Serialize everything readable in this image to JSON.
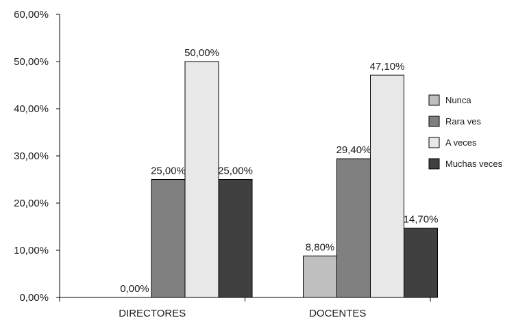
{
  "chart_data": {
    "type": "bar",
    "title": "",
    "xlabel": "",
    "ylabel": "",
    "ylim": [
      0,
      60
    ],
    "yticks": [
      "0,00%",
      "10,00%",
      "20,00%",
      "30,00%",
      "40,00%",
      "50,00%",
      "60,00%"
    ],
    "categories": [
      "DIRECTORES",
      "DOCENTES"
    ],
    "legend_position": "right",
    "grid": false,
    "series": [
      {
        "name": "Nunca",
        "color": "#bfbfbf",
        "values": [
          0.0,
          8.8
        ],
        "labels": [
          "0,00%",
          "8,80%"
        ]
      },
      {
        "name": "Rara ves",
        "color": "#808080",
        "values": [
          25.0,
          29.4
        ],
        "labels": [
          "25,00%",
          "29,40%"
        ]
      },
      {
        "name": "A veces",
        "color": "#e8e8e8",
        "values": [
          50.0,
          47.1
        ],
        "labels": [
          "50,00%",
          "47,10%"
        ]
      },
      {
        "name": "Muchas veces",
        "color": "#404040",
        "values": [
          25.0,
          14.7
        ],
        "labels": [
          "25,00%",
          "14,70%"
        ]
      }
    ]
  }
}
